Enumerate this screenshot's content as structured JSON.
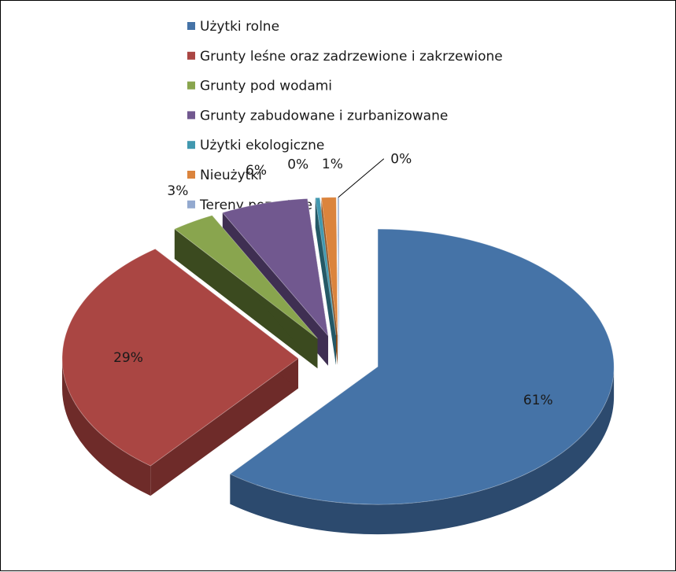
{
  "chart_data": {
    "type": "pie",
    "style": "3d-exploded",
    "legend_position": "top",
    "slices": [
      {
        "name": "Użytki rolne",
        "value": 61,
        "label": "61%",
        "color": "#4573A7",
        "side_color": "#2C4A6E"
      },
      {
        "name": "Grunty leśne oraz zadrzewione i zakrzewione",
        "value": 29,
        "label": "29%",
        "color": "#AA4643",
        "side_color": "#6E2B29"
      },
      {
        "name": "Grunty pod wodami",
        "value": 3,
        "label": "3%",
        "color": "#89A54E",
        "side_color": "#3B4A1F"
      },
      {
        "name": "Grunty zabudowane i zurbanizowane",
        "value": 6,
        "label": "6%",
        "color": "#71588F",
        "side_color": "#3F2F52"
      },
      {
        "name": "Użytki ekologiczne",
        "value": 0.3,
        "label": "0%",
        "color": "#4198AF",
        "side_color": "#245866"
      },
      {
        "name": "Nieużytki",
        "value": 1,
        "label": "1%",
        "color": "#DB843D",
        "side_color": "#8A4E1F"
      },
      {
        "name": "Tereny pozostałe",
        "value": 0.1,
        "label": "0%",
        "color": "#93A9CF",
        "side_color": "#5F7396"
      }
    ]
  }
}
